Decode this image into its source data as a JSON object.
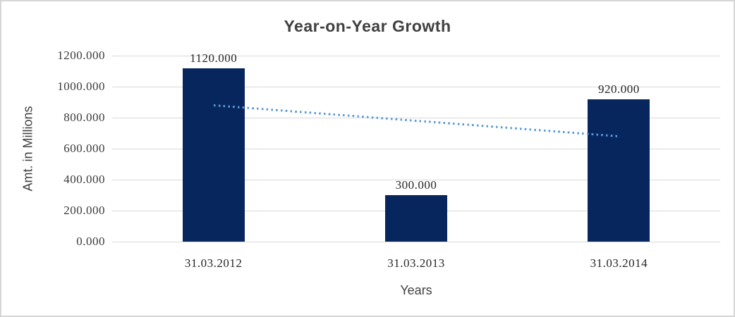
{
  "page": {
    "background": "#ffffff",
    "border_color": "#d6d6d6"
  },
  "chart_data": {
    "type": "bar",
    "title": "Year-on-Year Growth",
    "xlabel": "Years",
    "ylabel": "Amt. in Millions",
    "categories": [
      "31.03.2012",
      "31.03.2013",
      "31.03.2014"
    ],
    "values": [
      1120,
      300,
      920
    ],
    "data_labels": [
      "1120.000",
      "300.000",
      "920.000"
    ],
    "ylim": [
      0,
      1200
    ],
    "ytick_interval": 200,
    "yticks": [
      1200,
      1000,
      800,
      600,
      400,
      200,
      0
    ],
    "ytick_labels": [
      "1200.000",
      "1000.000",
      "800.000",
      "600.000",
      "400.000",
      "200.000",
      "0.000"
    ],
    "grid": "horizontal-on",
    "legend_position": "none",
    "trendline": {
      "type": "linear",
      "style": "dotted",
      "start_value": 880,
      "end_value": 680
    },
    "colors": {
      "bar": "#08265e",
      "trendline": "#5b9bd5",
      "gridline": "#d9d9d9",
      "title_text": "#404040",
      "tick_text": "#3a3a3a"
    }
  }
}
